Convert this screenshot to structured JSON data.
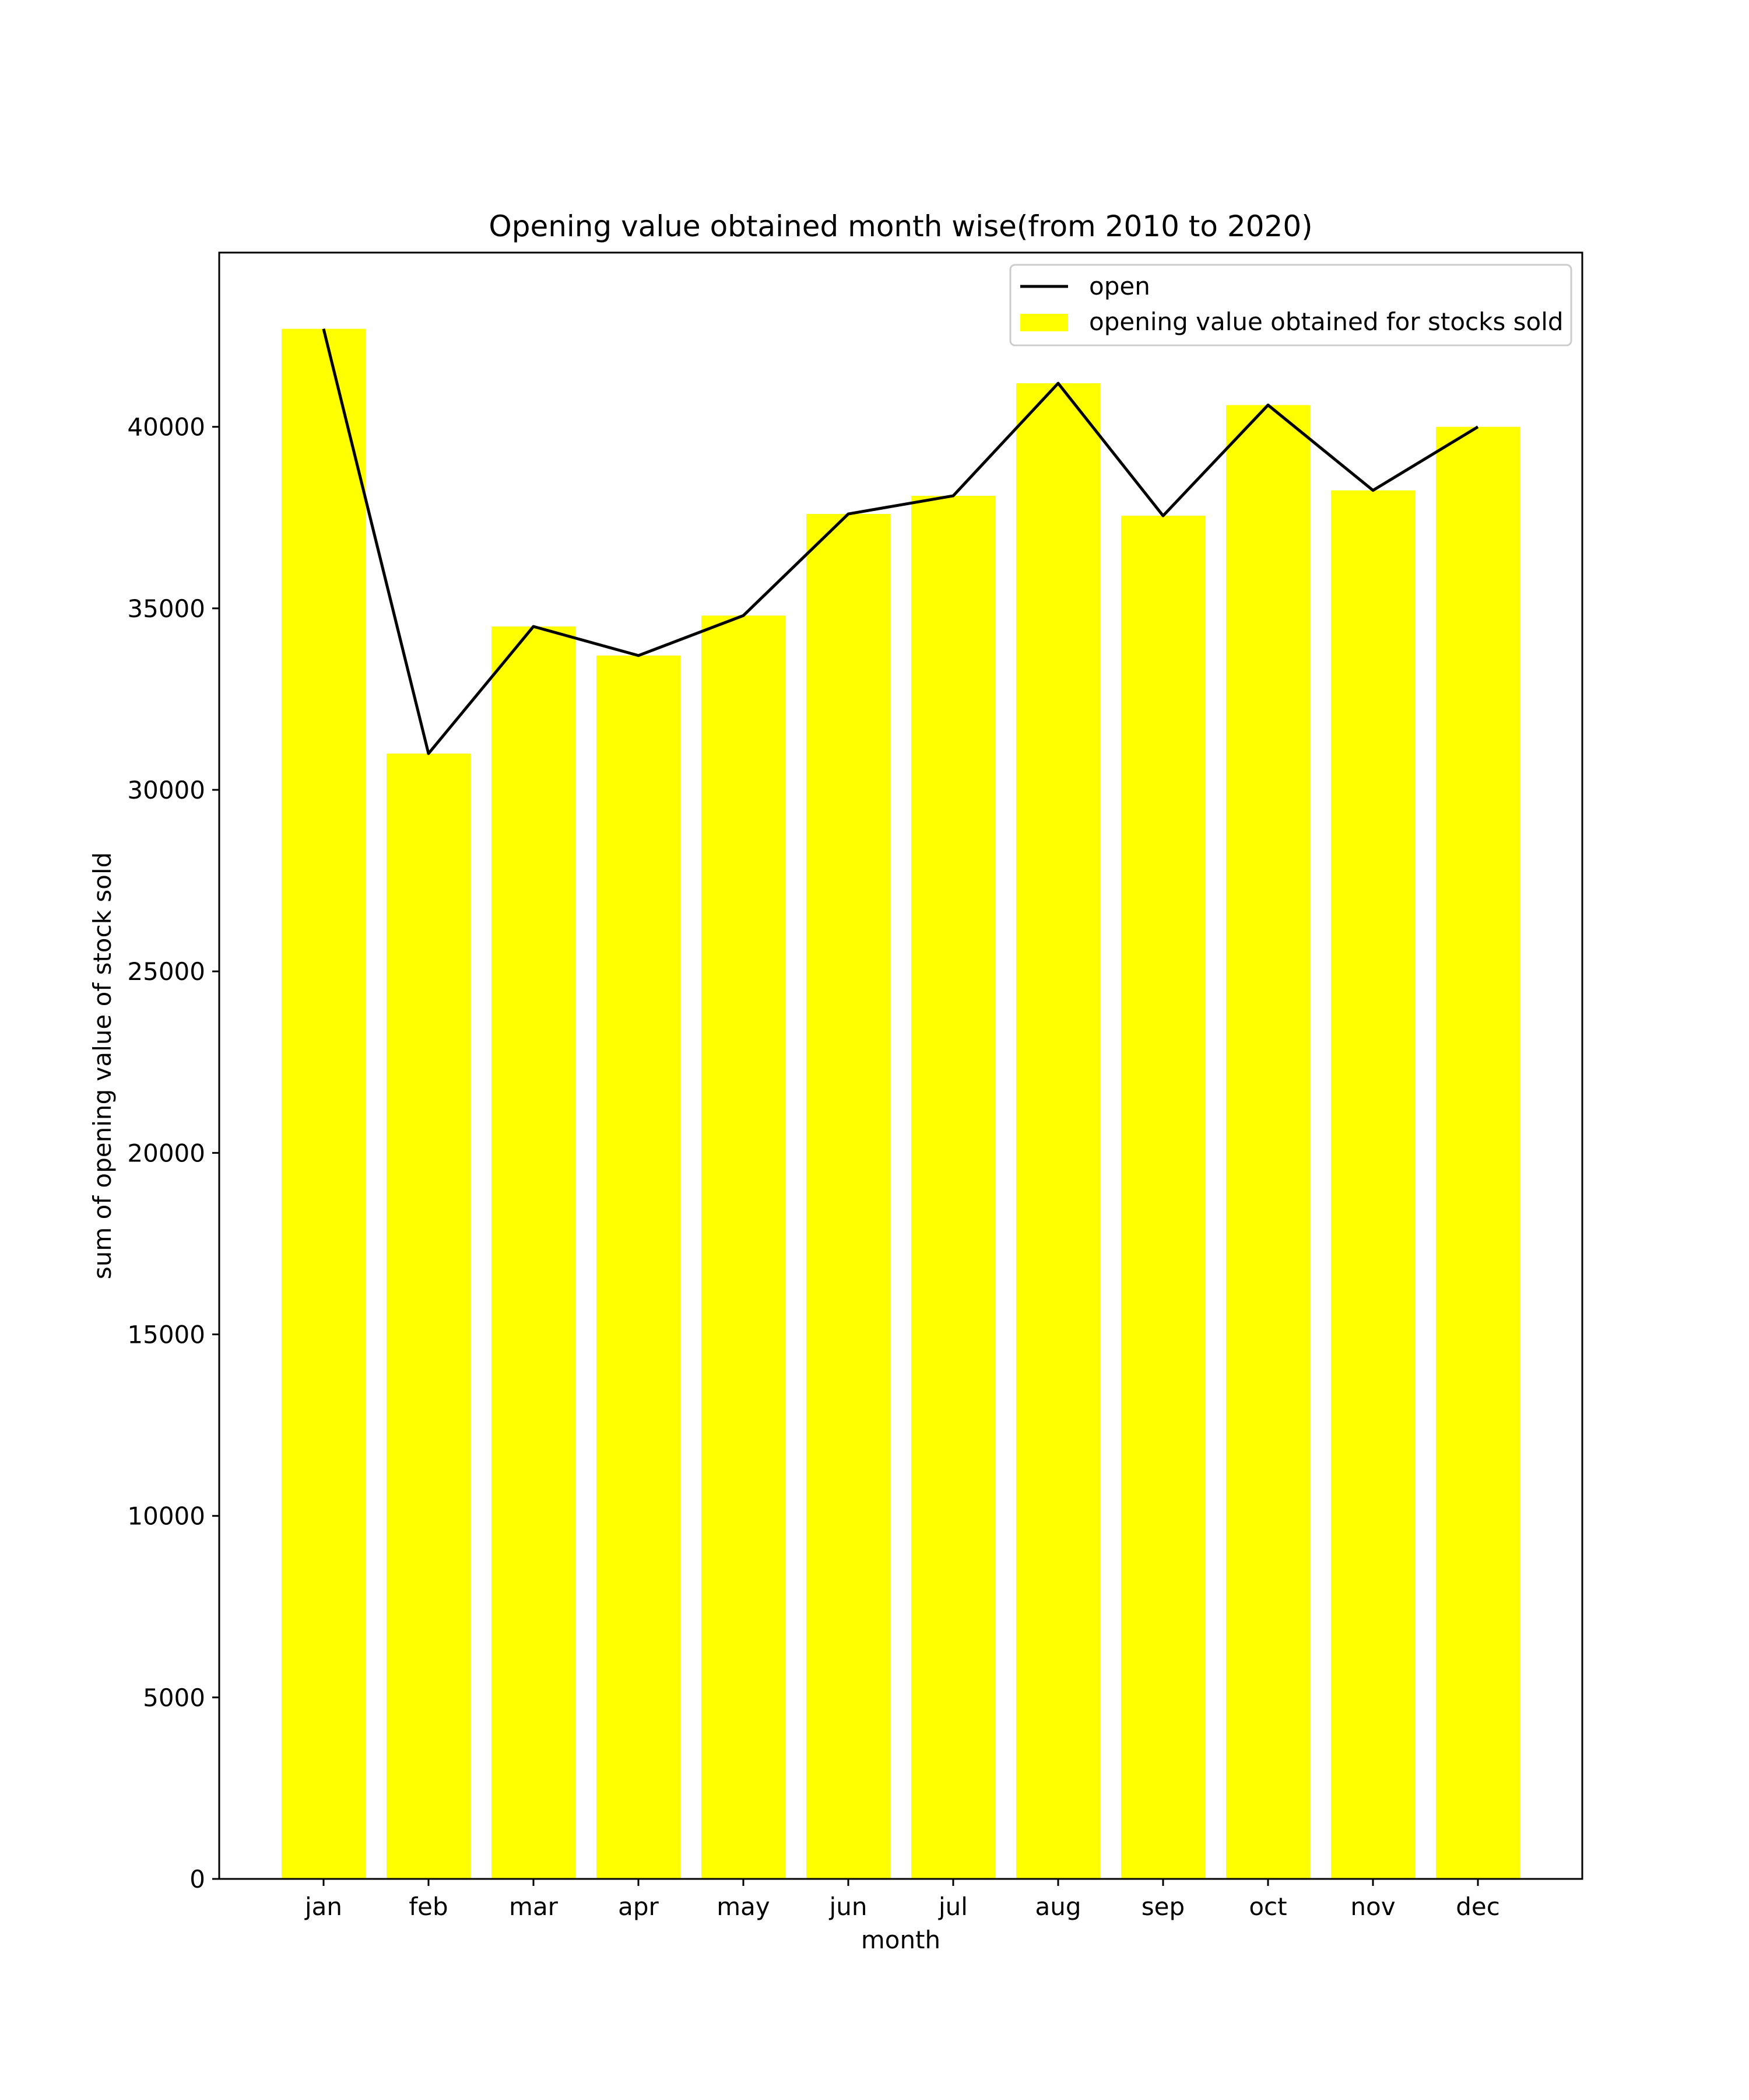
{
  "chart_data": {
    "type": "bar",
    "title": "Opening value obtained month wise(from 2010 to 2020)",
    "xlabel": "month",
    "ylabel": "sum of opening value of stock sold",
    "categories": [
      "jan",
      "feb",
      "mar",
      "apr",
      "may",
      "jun",
      "jul",
      "aug",
      "sep",
      "oct",
      "nov",
      "dec"
    ],
    "series": [
      {
        "name": "opening value obtained for stocks sold",
        "type": "bar",
        "color": "#ffff00",
        "values": [
          42700,
          31000,
          34500,
          33700,
          34800,
          37600,
          38100,
          41200,
          37550,
          40600,
          38250,
          40000
        ]
      },
      {
        "name": "open",
        "type": "line",
        "color": "#000000",
        "values": [
          42700,
          31000,
          34500,
          33700,
          34800,
          37600,
          38100,
          41200,
          37550,
          40600,
          38250,
          40000
        ]
      }
    ],
    "ylim": [
      0,
      44800
    ],
    "yticks": [
      0,
      5000,
      10000,
      15000,
      20000,
      25000,
      30000,
      35000,
      40000
    ],
    "grid": false,
    "legend_position": "top-right"
  }
}
